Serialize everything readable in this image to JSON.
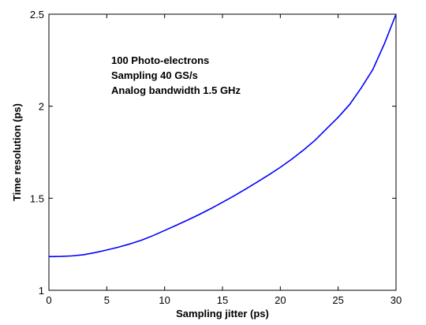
{
  "chart_data": {
    "type": "line",
    "title": "",
    "xlabel": "Sampling jitter (ps)",
    "ylabel": "Time resolution (ps)",
    "xlim": [
      0,
      30
    ],
    "ylim": [
      1,
      2.5
    ],
    "x_ticks": [
      0,
      5,
      10,
      15,
      20,
      25,
      30
    ],
    "y_ticks": [
      1,
      1.5,
      2,
      2.5
    ],
    "x_tick_labels": [
      "0",
      "5",
      "10",
      "15",
      "20",
      "25",
      "30"
    ],
    "y_tick_labels": [
      "1",
      "1.5",
      "2",
      "2.5"
    ],
    "grid": false,
    "annotations": [
      "100 Photo-electrons",
      "Sampling 40 GS/s",
      "Analog bandwidth 1.5 GHz"
    ],
    "series": [
      {
        "color": "#0000ff",
        "x": [
          0,
          1,
          2,
          3,
          4,
          5,
          6,
          7,
          8,
          9,
          10,
          11,
          12,
          13,
          14,
          15,
          16,
          17,
          18,
          19,
          20,
          21,
          22,
          23,
          24,
          25,
          26,
          27,
          28,
          29,
          30
        ],
        "y": [
          1.183,
          1.184,
          1.187,
          1.193,
          1.205,
          1.219,
          1.234,
          1.252,
          1.272,
          1.297,
          1.325,
          1.353,
          1.382,
          1.412,
          1.444,
          1.478,
          1.513,
          1.55,
          1.588,
          1.627,
          1.668,
          1.713,
          1.762,
          1.815,
          1.878,
          1.94,
          2.01,
          2.1,
          2.2,
          2.34,
          2.5
        ]
      }
    ]
  }
}
